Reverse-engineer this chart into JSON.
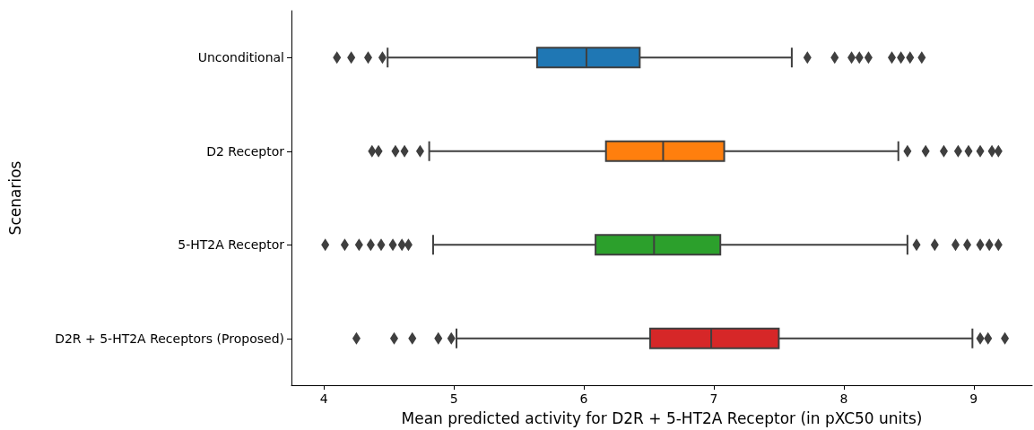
{
  "chart_data": {
    "type": "box",
    "orientation": "horizontal",
    "xlabel": "Mean predicted activity for D2R + 5-HT2A Receptor (in pXC50 units)",
    "ylabel": "Scenarios",
    "categories": [
      "Unconditional",
      "D2 Receptor",
      "5-HT2A Receptor",
      "D2R + 5-HT2A Receptors (Proposed)"
    ],
    "colors": [
      "#1f77b4",
      "#ff7f0e",
      "#2ca02c",
      "#d62728"
    ],
    "boxes": [
      {
        "low": 4.49,
        "q1": 5.64,
        "median": 6.02,
        "q3": 6.43,
        "high": 7.6,
        "outliers": [
          4.1,
          4.21,
          4.34,
          4.45,
          7.72,
          7.93,
          8.06,
          8.12,
          8.19,
          8.37,
          8.44,
          8.51,
          8.6
        ]
      },
      {
        "low": 4.81,
        "q1": 6.17,
        "median": 6.61,
        "q3": 7.08,
        "high": 8.42,
        "outliers": [
          4.37,
          4.42,
          4.55,
          4.62,
          4.74,
          8.49,
          8.63,
          8.77,
          8.88,
          8.96,
          9.05,
          9.14,
          9.19
        ]
      },
      {
        "low": 4.84,
        "q1": 6.09,
        "median": 6.54,
        "q3": 7.05,
        "high": 8.49,
        "outliers": [
          4.01,
          4.16,
          4.27,
          4.36,
          4.44,
          4.53,
          4.6,
          4.65,
          8.56,
          8.7,
          8.86,
          8.95,
          9.05,
          9.12,
          9.19
        ]
      },
      {
        "low": 5.02,
        "q1": 6.51,
        "median": 6.98,
        "q3": 7.5,
        "high": 8.99,
        "outliers": [
          4.25,
          4.54,
          4.68,
          4.88,
          4.98,
          9.05,
          9.11,
          9.24
        ]
      }
    ],
    "xlim": [
      3.75,
      9.45
    ],
    "xticks": [
      4,
      5,
      6,
      7,
      8,
      9
    ],
    "grid": false,
    "marker": "diamond"
  }
}
